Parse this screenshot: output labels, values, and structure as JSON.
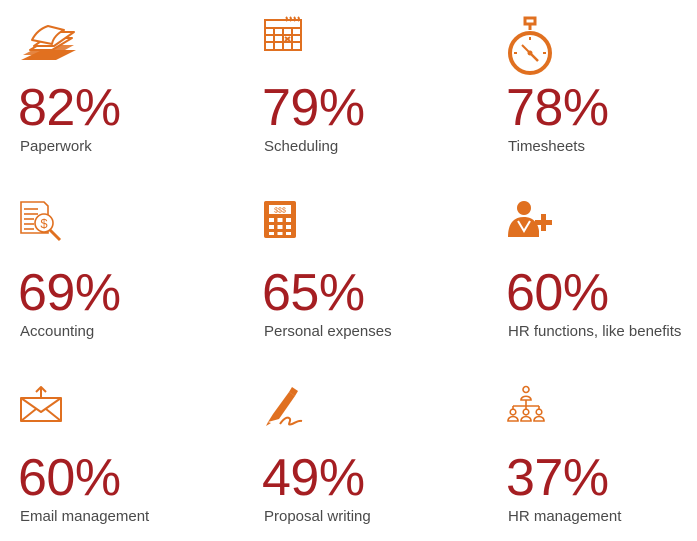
{
  "colors": {
    "accent": "#a51e22",
    "icon": "#e07020",
    "label": "#4a4a4a"
  },
  "stats": [
    {
      "value": "82%",
      "label": "Paperwork",
      "icon": "paper-stack-icon"
    },
    {
      "value": "79%",
      "label": "Scheduling",
      "icon": "calendar-icon"
    },
    {
      "value": "78%",
      "label": "Timesheets",
      "icon": "stopwatch-icon"
    },
    {
      "value": "69%",
      "label": "Accounting",
      "icon": "document-magnifier-dollar-icon"
    },
    {
      "value": "65%",
      "label": "Personal expenses",
      "icon": "calculator-icon"
    },
    {
      "value": "60%",
      "label": "HR functions, like benefits",
      "icon": "person-plus-icon"
    },
    {
      "value": "60%",
      "label": "Email management",
      "icon": "envelope-icon"
    },
    {
      "value": "49%",
      "label": "Proposal writing",
      "icon": "pen-signature-icon"
    },
    {
      "value": "37%",
      "label": "HR management",
      "icon": "org-chart-icon"
    }
  ]
}
